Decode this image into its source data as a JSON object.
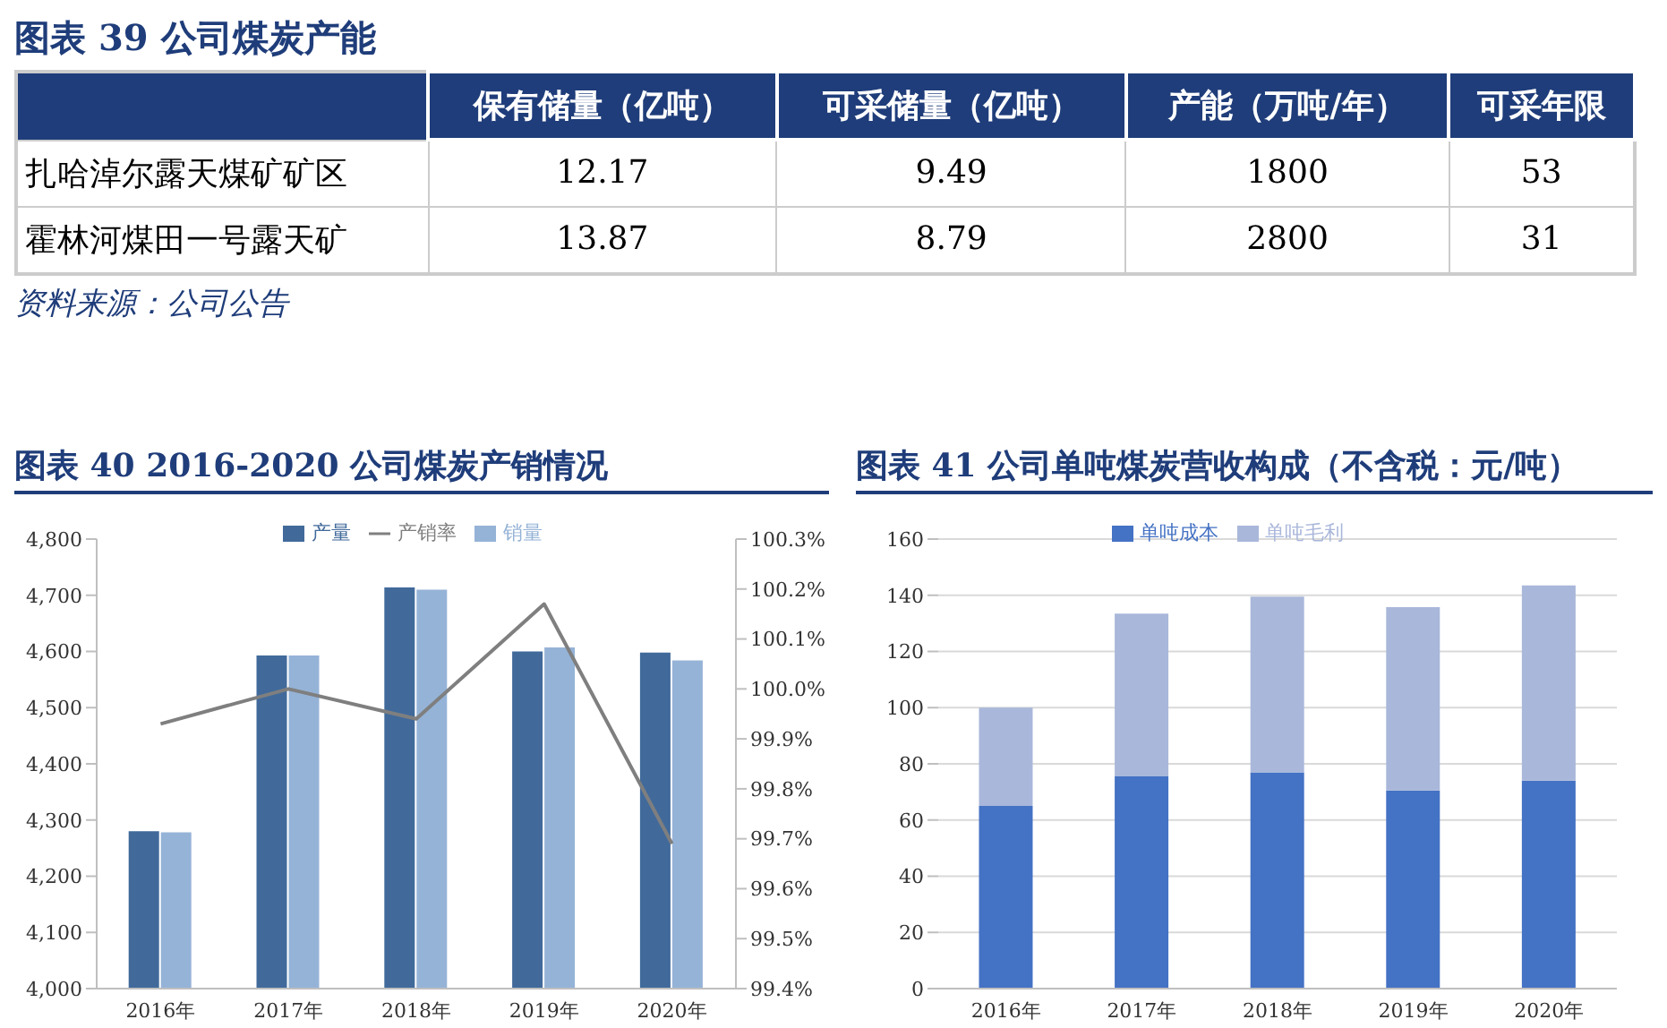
{
  "chart_data": [
    {
      "type": "other",
      "title": "图表 39  公司煤炭产能",
      "categories": [
        "扎哈淖尔露天煤矿矿区",
        "霍林河煤田一号露天矿"
      ],
      "series": [
        {
          "name": "保有储量（亿吨）",
          "values": [
            12.17,
            13.87
          ]
        },
        {
          "name": "可采储量（亿吨）",
          "values": [
            9.49,
            8.79
          ]
        },
        {
          "name": "产能（万吨/年）",
          "values": [
            1800,
            2800
          ]
        },
        {
          "name": "可采年限",
          "values": [
            53,
            31
          ]
        }
      ],
      "data_labels": true,
      "annotations": [
        "资料来源：公司公告"
      ]
    },
    {
      "type": "bar",
      "title": "图表 40  2016-2020 公司煤炭产销情况",
      "categories": [
        "2016年",
        "2017年",
        "2018年",
        "2019年",
        "2020年"
      ],
      "series": [
        {
          "name": "产量",
          "color": "#416a9b",
          "values": [
            4280,
            4593,
            4714,
            4600,
            4598
          ]
        },
        {
          "name": "销量",
          "color": "#95b3d7",
          "values": [
            4278,
            4593,
            4710,
            4607,
            4584
          ]
        },
        {
          "name": "产销率",
          "type": "line",
          "axis": "y2",
          "color": "#7f7f7f",
          "values": [
            99.93,
            100.0,
            99.94,
            100.17,
            99.69
          ]
        }
      ],
      "ylim": [
        4000,
        4800
      ],
      "yticks": [
        {
          "value": 4000,
          "label": "4,000"
        },
        {
          "value": 4100,
          "label": "4,100"
        },
        {
          "value": 4200,
          "label": "4,200"
        },
        {
          "value": 4300,
          "label": "4,300"
        },
        {
          "value": 4400,
          "label": "4,400"
        },
        {
          "value": 4500,
          "label": "4,500"
        },
        {
          "value": 4600,
          "label": "4,600"
        },
        {
          "value": 4700,
          "label": "4,700"
        },
        {
          "value": 4800,
          "label": "4,800"
        }
      ],
      "y2lim": [
        99.4,
        100.3
      ],
      "y2ticks": [
        {
          "value": 99.4,
          "label": "99.4%"
        },
        {
          "value": 99.5,
          "label": "99.5%"
        },
        {
          "value": 99.6,
          "label": "99.6%"
        },
        {
          "value": 99.7,
          "label": "99.7%"
        },
        {
          "value": 99.8,
          "label": "99.8%"
        },
        {
          "value": 99.9,
          "label": "99.9%"
        },
        {
          "value": 100.0,
          "label": "100.0%"
        },
        {
          "value": 100.1,
          "label": "100.1%"
        },
        {
          "value": 100.2,
          "label": "100.2%"
        },
        {
          "value": 100.3,
          "label": "100.3%"
        }
      ],
      "legend": "top",
      "grid": false,
      "marker": "none"
    },
    {
      "type": "bar",
      "title": "图表 41  公司单吨煤炭营收构成（不含税：元/吨）",
      "categories": [
        "2016年",
        "2017年",
        "2018年",
        "2019年",
        "2020年"
      ],
      "stacked": true,
      "series": [
        {
          "name": "单吨成本",
          "color": "#4472c4",
          "values": [
            65,
            75.5,
            77,
            70.5,
            74
          ]
        },
        {
          "name": "单吨毛利",
          "color": "#a9b7da",
          "values": [
            35,
            58,
            62.5,
            65.3,
            69.5
          ]
        }
      ],
      "ylim": [
        0,
        160
      ],
      "yticks": [
        0,
        20,
        40,
        60,
        80,
        100,
        120,
        140,
        160
      ],
      "legend": "top",
      "grid": "y"
    }
  ]
}
